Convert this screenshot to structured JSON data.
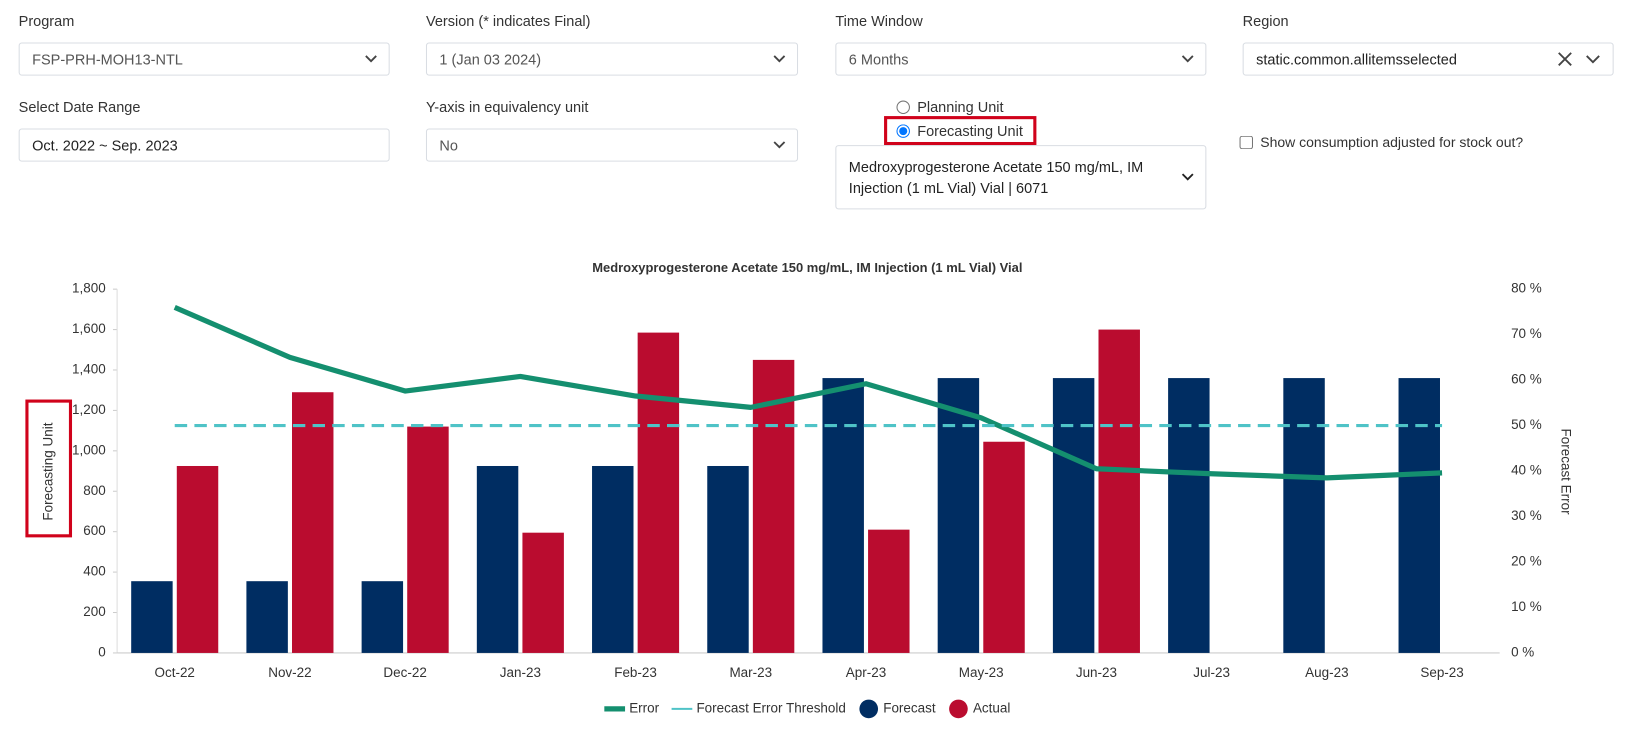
{
  "filters": {
    "program": {
      "label": "Program",
      "value": "FSP-PRH-MOH13-NTL"
    },
    "version": {
      "label": "Version (* indicates Final)",
      "value": "1 (Jan 03 2024)"
    },
    "time_window": {
      "label": "Time Window",
      "value": "6 Months"
    },
    "region": {
      "label": "Region",
      "value": "static.common.allitemsselected"
    },
    "date_range": {
      "label": "Select Date Range",
      "value": "Oct. 2022 ~ Sep. 2023"
    },
    "y_axis_equivalency": {
      "label": "Y-axis in equivalency unit",
      "value": "No"
    },
    "unit_type": {
      "options": [
        "Planning Unit",
        "Forecasting Unit"
      ],
      "selected": 1
    },
    "product": "Medroxyprogesterone Acetate 150 mg/mL, IM Injection (1 mL Vial) Vial | 6071",
    "stock_out_checkbox": "Show consumption adjusted for stock out?"
  },
  "chart_data": {
    "type": "combo",
    "title": "Medroxyprogesterone Acetate 150 mg/mL, IM Injection (1 mL Vial) Vial",
    "y_label": "Forecasting Unit",
    "y2_label": "Forecast Error",
    "categories": [
      "Oct-22",
      "Nov-22",
      "Dec-22",
      "Jan-23",
      "Feb-23",
      "Mar-23",
      "Apr-23",
      "May-23",
      "Jun-23",
      "Jul-23",
      "Aug-23",
      "Sep-23"
    ],
    "series": [
      {
        "name": "Error",
        "type": "line",
        "axis": "y2",
        "color": "#148f6f",
        "values": [
          76,
          65,
          57.6,
          60.8,
          56.5,
          54,
          59.2,
          51.7,
          40.5,
          39.4,
          38.5,
          39.6
        ]
      },
      {
        "name": "Forecast Error Threshold",
        "type": "line",
        "axis": "y2",
        "color": "#4fc3c7",
        "dashed": true,
        "values": [
          50,
          50,
          50,
          50,
          50,
          50,
          50,
          50,
          50,
          50,
          50,
          50
        ]
      },
      {
        "name": "Forecast",
        "type": "bar",
        "color": "#002d62",
        "values": [
          355,
          355,
          355,
          925,
          925,
          925,
          1360,
          1360,
          1360,
          1360,
          1360,
          1360
        ]
      },
      {
        "name": "Actual",
        "type": "bar",
        "color": "#ba0c2f",
        "values": [
          925,
          1290,
          1120,
          595,
          1585,
          1450,
          610,
          1045,
          1600,
          null,
          null,
          null
        ]
      }
    ],
    "ylim": [
      0,
      1800
    ],
    "yticks": [
      0,
      200,
      400,
      600,
      800,
      {
        "value": 1000,
        "label": "1,000"
      },
      {
        "value": 1200,
        "label": "1,200"
      },
      {
        "value": 1400,
        "label": "1,400"
      },
      {
        "value": 1600,
        "label": "1,600"
      },
      {
        "value": 1800,
        "label": "1,800"
      }
    ],
    "y2lim": [
      0,
      80
    ],
    "y2ticks": [
      {
        "value": 0,
        "label": "0 %"
      },
      {
        "value": 10,
        "label": "10 %"
      },
      {
        "value": 20,
        "label": "20 %"
      },
      {
        "value": 30,
        "label": "30 %"
      },
      {
        "value": 40,
        "label": "40 %"
      },
      {
        "value": 50,
        "label": "50 %"
      },
      {
        "value": 60,
        "label": "60 %"
      },
      {
        "value": 70,
        "label": "70 %"
      },
      {
        "value": 80,
        "label": "80 %"
      }
    ],
    "legend": "bottom"
  }
}
